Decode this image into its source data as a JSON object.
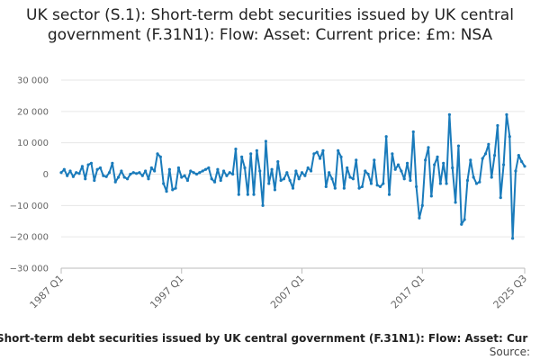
{
  "chart_data": {
    "type": "line",
    "title": "UK sector (S.1): Short-term debt securities issued by UK central government (F.31N1): Flow: Asset: Current price: £m: NSA",
    "legend_text": "Short-term debt securities issued by UK central government (F.31N1): Flow: Asset: Cur",
    "source": "Source:",
    "categories": [
      "1987 Q1",
      null,
      null,
      null,
      null,
      null,
      null,
      null,
      null,
      null,
      null,
      null,
      null,
      null,
      null,
      null,
      null,
      null,
      null,
      null,
      null,
      null,
      null,
      null,
      null,
      null,
      null,
      null,
      null,
      null,
      null,
      null,
      null,
      null,
      null,
      null,
      null,
      null,
      null,
      null,
      "1997 Q1",
      null,
      null,
      null,
      null,
      null,
      null,
      null,
      null,
      null,
      null,
      null,
      null,
      null,
      null,
      null,
      null,
      null,
      null,
      null,
      null,
      null,
      null,
      null,
      null,
      null,
      null,
      null,
      null,
      null,
      null,
      null,
      null,
      null,
      null,
      null,
      null,
      null,
      null,
      null,
      "2007 Q1",
      null,
      null,
      null,
      null,
      null,
      null,
      null,
      null,
      null,
      null,
      null,
      null,
      null,
      null,
      null,
      null,
      null,
      null,
      null,
      null,
      null,
      null,
      null,
      null,
      null,
      null,
      null,
      null,
      null,
      null,
      null,
      null,
      null,
      null,
      null,
      null,
      null,
      null,
      null,
      "2017 Q1",
      null,
      null,
      null,
      null,
      null,
      null,
      null,
      null,
      null,
      null,
      null,
      null,
      null,
      null,
      null,
      null,
      null,
      null,
      null,
      null,
      null,
      null,
      null,
      null,
      null,
      null,
      null,
      null,
      null,
      null,
      null,
      null,
      null,
      "2025 Q3"
    ],
    "series": [
      {
        "color": "#1a7bbb",
        "values": [
          500,
          1500,
          -500,
          1000,
          -800,
          500,
          200,
          2500,
          -1500,
          3000,
          3500,
          -2000,
          1500,
          2000,
          -500,
          -800,
          500,
          3500,
          -2500,
          -1000,
          1000,
          -1000,
          -1500,
          0,
          500,
          200,
          500,
          -500,
          1000,
          -1500,
          2000,
          1000,
          6500,
          5500,
          -3000,
          -5500,
          1500,
          -5000,
          -4500,
          2000,
          -1000,
          -500,
          -2000,
          1000,
          500,
          0,
          500,
          1000,
          1500,
          2000,
          -1500,
          -2500,
          1500,
          -2000,
          1000,
          -500,
          500,
          0,
          8000,
          -6500,
          5500,
          2000,
          -6500,
          6500,
          -6500,
          7500,
          1000,
          -10000,
          10500,
          -3000,
          1500,
          -5000,
          4000,
          -2000,
          -1500,
          500,
          -2000,
          -4500,
          1000,
          -1500,
          500,
          -500,
          2000,
          1000,
          6500,
          7000,
          5000,
          7500,
          -4000,
          500,
          -1500,
          -4500,
          7500,
          5500,
          -4500,
          2000,
          -1000,
          -1500,
          4500,
          -4500,
          -4000,
          1000,
          0,
          -3000,
          4500,
          -3500,
          -4000,
          -3000,
          12000,
          -6500,
          6500,
          1500,
          3000,
          1000,
          -1500,
          3500,
          -2000,
          13500,
          -4000,
          -14000,
          -10000,
          4500,
          8500,
          -7000,
          3000,
          5500,
          -3000,
          3500,
          -3000,
          19000,
          2000,
          -9000,
          9000,
          -16000,
          -14500,
          -2000,
          4500,
          -1000,
          -3000,
          -2500,
          5000,
          6500,
          9500,
          -1000,
          6000,
          15500,
          -7500,
          3000,
          19000,
          12000,
          -20500,
          1000,
          6000,
          4000,
          2500
        ]
      }
    ],
    "ylim": [
      -30000,
      30000
    ],
    "yticks": [
      {
        "value": -30000,
        "label": "−30 000"
      },
      {
        "value": -20000,
        "label": "−20 000"
      },
      {
        "value": -10000,
        "label": "−10 000"
      },
      0,
      {
        "value": 10000,
        "label": "10 000"
      },
      {
        "value": 20000,
        "label": "20 000"
      },
      {
        "value": 30000,
        "label": "30 000"
      }
    ],
    "grid": true,
    "markers": true
  }
}
